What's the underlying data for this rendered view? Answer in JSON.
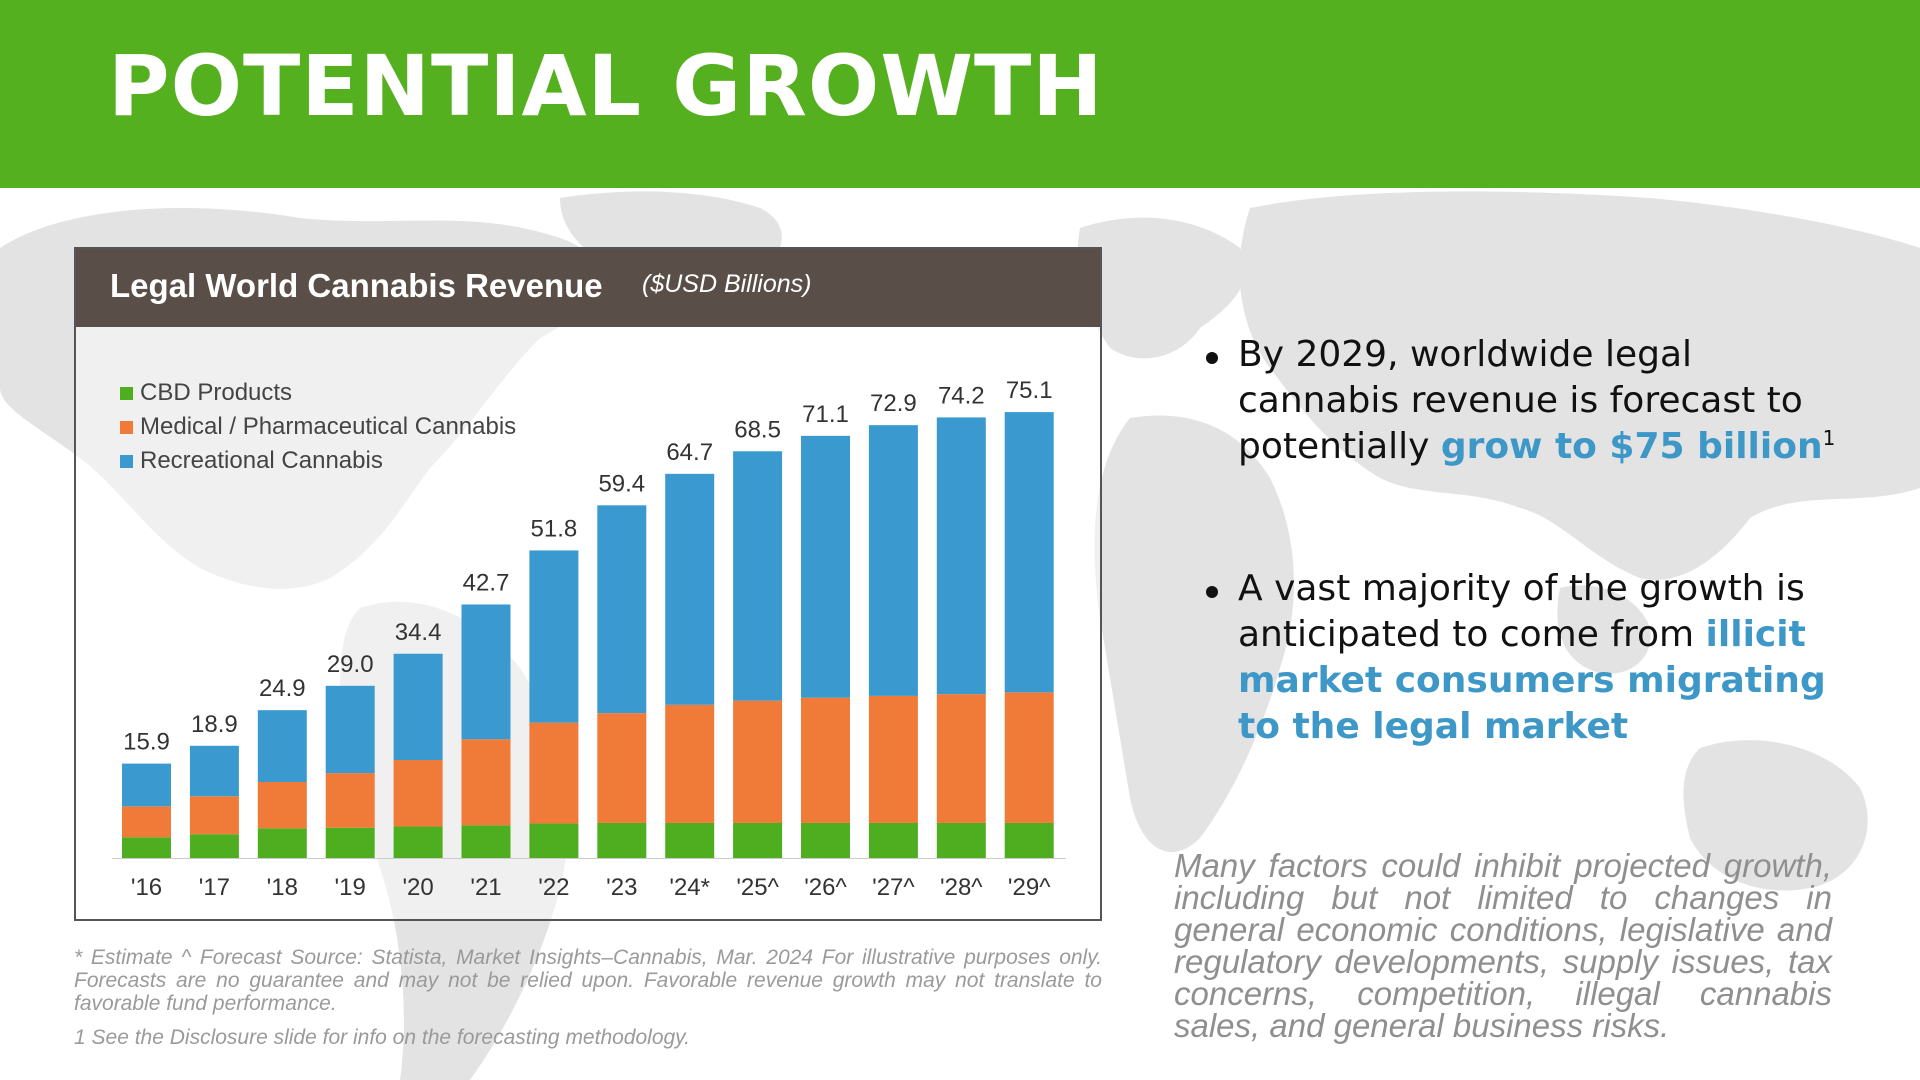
{
  "header": {
    "title": "POTENTIAL GROWTH"
  },
  "colors": {
    "header_bg": "#55b020",
    "title_bar_bg": "#5a4f48",
    "cbd": "#4fae1f",
    "medical": "#f07a38",
    "recreational": "#3a9ad0",
    "highlight": "#3d97c7"
  },
  "chart_data": {
    "type": "bar",
    "stacked": true,
    "title": "Legal World Cannabis Revenue",
    "subtitle": "($USD Billions)",
    "categories": [
      "'16",
      "'17",
      "'18",
      "'19",
      "'20",
      "'21",
      "'22",
      "'23",
      "'24*",
      "'25^",
      "'26^",
      "'27^",
      "'28^",
      "'29^"
    ],
    "totals": [
      15.9,
      18.9,
      24.9,
      29.0,
      34.4,
      42.7,
      51.8,
      59.4,
      64.7,
      68.5,
      71.1,
      72.9,
      74.2,
      75.1
    ],
    "total_labels": [
      "15.9",
      "18.9",
      "24.9",
      "29.0",
      "34.4",
      "42.7",
      "51.8",
      "59.4",
      "64.7",
      "68.5",
      "71.1",
      "72.9",
      "74.2",
      "75.1"
    ],
    "series": [
      {
        "name": "CBD Products",
        "color": "#4fae1f",
        "values": [
          3.5,
          4.0,
          5.0,
          5.1,
          5.3,
          5.5,
          5.8,
          5.9,
          5.9,
          5.9,
          5.9,
          5.9,
          5.9,
          5.9
        ]
      },
      {
        "name": "Medical / Pharmaceutical Cannabis",
        "color": "#f07a38",
        "values": [
          5.2,
          6.4,
          7.8,
          9.2,
          11.2,
          14.5,
          17.0,
          18.5,
          19.9,
          20.6,
          21.1,
          21.4,
          21.7,
          22.0
        ]
      },
      {
        "name": "Recreational Cannabis",
        "color": "#3a9ad0",
        "values": [
          7.2,
          8.5,
          12.1,
          14.7,
          17.9,
          22.7,
          29.0,
          35.0,
          38.9,
          42.0,
          44.1,
          45.6,
          46.6,
          47.2
        ]
      }
    ],
    "ylim": [
      0,
      80
    ],
    "legend_position": "top-left",
    "grid": false
  },
  "footnotes": {
    "source": "* Estimate    ^ Forecast    Source: Statista, Market Insights–Cannabis, Mar. 2024 For illustrative purposes only. Forecasts are no guarantee and may not be relied upon. Favorable revenue growth may not translate to favorable fund performance.",
    "methodology": "1 See the Disclosure slide for info on the forecasting methodology."
  },
  "bullets": [
    {
      "text": "By 2029, worldwide legal cannabis revenue is forecast to potentially ",
      "highlight": "grow to $75 billion",
      "sup": "1"
    },
    {
      "text": "A vast majority of the growth is anticipated to come from ",
      "highlight": "illicit market consumers migrating to the legal market",
      "sup": ""
    }
  ],
  "disclaimer": "Many factors could inhibit projected growth, including but not limited to changes in general economic conditions, legislative and regulatory developments, supply issues, tax concerns, competition, illegal cannabis sales, and general business risks."
}
